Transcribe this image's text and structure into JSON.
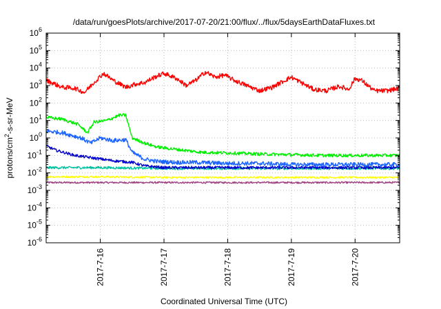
{
  "chart_data": {
    "type": "line",
    "title": "/data/run/goesPlots/archive/2017-07-20/21:00/flux/../flux/5daysEarthDataFluxes.txt",
    "xlabel": "Coordinated Universal Time (UTC)",
    "ylabel": {
      "main": "protons/cm",
      "sup": "2",
      "rest": "-s-sr-MeV"
    },
    "yscale": "log",
    "ylim_exp": [
      -6,
      6
    ],
    "ytick_exps": [
      -6,
      -5,
      -4,
      -3,
      -2,
      -1,
      0,
      1,
      2,
      3,
      4,
      5,
      6
    ],
    "ytick_base": "10",
    "xlim_days": [
      15.15,
      20.7
    ],
    "xticks": [
      {
        "day": 16,
        "label": "2017-7-16"
      },
      {
        "day": 17,
        "label": "2017-7-17"
      },
      {
        "day": 18,
        "label": "2017-7-18"
      },
      {
        "day": 19,
        "label": "2017-7-19"
      },
      {
        "day": 20,
        "label": "2017-7-20"
      }
    ],
    "grid": true,
    "legend": "none",
    "series": [
      {
        "color": "#ff0000",
        "noise": 0.13,
        "x": [
          15.15,
          15.4,
          15.6,
          15.75,
          15.9,
          16.05,
          16.2,
          16.4,
          16.55,
          16.7,
          16.85,
          17.0,
          17.2,
          17.35,
          17.5,
          17.65,
          17.8,
          17.95,
          18.1,
          18.3,
          18.5,
          18.7,
          18.9,
          19.0,
          19.15,
          19.35,
          19.55,
          19.75,
          19.9,
          20.0,
          20.1,
          20.3,
          20.5,
          20.7
        ],
        "y": [
          2000,
          800,
          700,
          400,
          1500,
          5000,
          2000,
          800,
          1200,
          1500,
          3000,
          5000,
          2500,
          1000,
          2000,
          6000,
          3000,
          4000,
          2000,
          1000,
          500,
          800,
          2000,
          3000,
          1500,
          600,
          500,
          900,
          600,
          2500,
          2000,
          500,
          500,
          700
        ]
      },
      {
        "color": "#00ee00",
        "noise": 0.09,
        "x": [
          15.15,
          15.4,
          15.65,
          15.8,
          15.9,
          16.1,
          16.3,
          16.4,
          16.5,
          16.7,
          16.9,
          17.2,
          17.6,
          18.0,
          18.5,
          19.0,
          19.5,
          20.0,
          20.7
        ],
        "y": [
          15,
          12,
          6,
          2,
          8,
          10,
          20,
          20,
          1,
          0.5,
          0.3,
          0.22,
          0.15,
          0.14,
          0.12,
          0.11,
          0.1,
          0.1,
          0.1
        ]
      },
      {
        "color": "#1e64ff",
        "noise": 0.12,
        "x": [
          15.15,
          15.4,
          15.7,
          15.85,
          16.0,
          16.2,
          16.4,
          16.5,
          16.7,
          16.9,
          17.2,
          17.5,
          18.0,
          18.5,
          19.0,
          19.5,
          20.0,
          20.7
        ],
        "y": [
          2.5,
          2,
          1,
          0.5,
          1,
          0.7,
          0.8,
          0.15,
          0.06,
          0.045,
          0.04,
          0.04,
          0.035,
          0.035,
          0.03,
          0.03,
          0.03,
          0.03
        ]
      },
      {
        "color": "#0000cc",
        "noise": 0.08,
        "x": [
          15.15,
          15.3,
          15.6,
          15.9,
          16.2,
          16.5,
          16.7,
          17.0,
          17.5,
          18.0,
          19.0,
          20.0,
          20.7
        ],
        "y": [
          0.35,
          0.2,
          0.1,
          0.07,
          0.05,
          0.04,
          0.025,
          0.02,
          0.02,
          0.02,
          0.02,
          0.02,
          0.02
        ]
      },
      {
        "color": "#00c0a0",
        "noise": 0.07,
        "x": [
          15.15,
          16.0,
          16.5,
          17.0,
          18.0,
          19.0,
          20.0,
          20.7
        ],
        "y": [
          0.02,
          0.02,
          0.019,
          0.018,
          0.018,
          0.018,
          0.018,
          0.018
        ]
      },
      {
        "color": "#ffff00",
        "noise": 0.05,
        "x": [
          15.15,
          16.0,
          17.0,
          18.0,
          19.0,
          20.0,
          20.7
        ],
        "y": [
          0.006,
          0.006,
          0.0055,
          0.0055,
          0.0055,
          0.0055,
          0.0055
        ]
      },
      {
        "color": "#a04080",
        "noise": 0.05,
        "x": [
          15.15,
          16.0,
          17.0,
          18.0,
          19.0,
          20.0,
          20.7
        ],
        "y": [
          0.0028,
          0.0028,
          0.0028,
          0.0028,
          0.0028,
          0.0028,
          0.0028
        ]
      }
    ]
  }
}
